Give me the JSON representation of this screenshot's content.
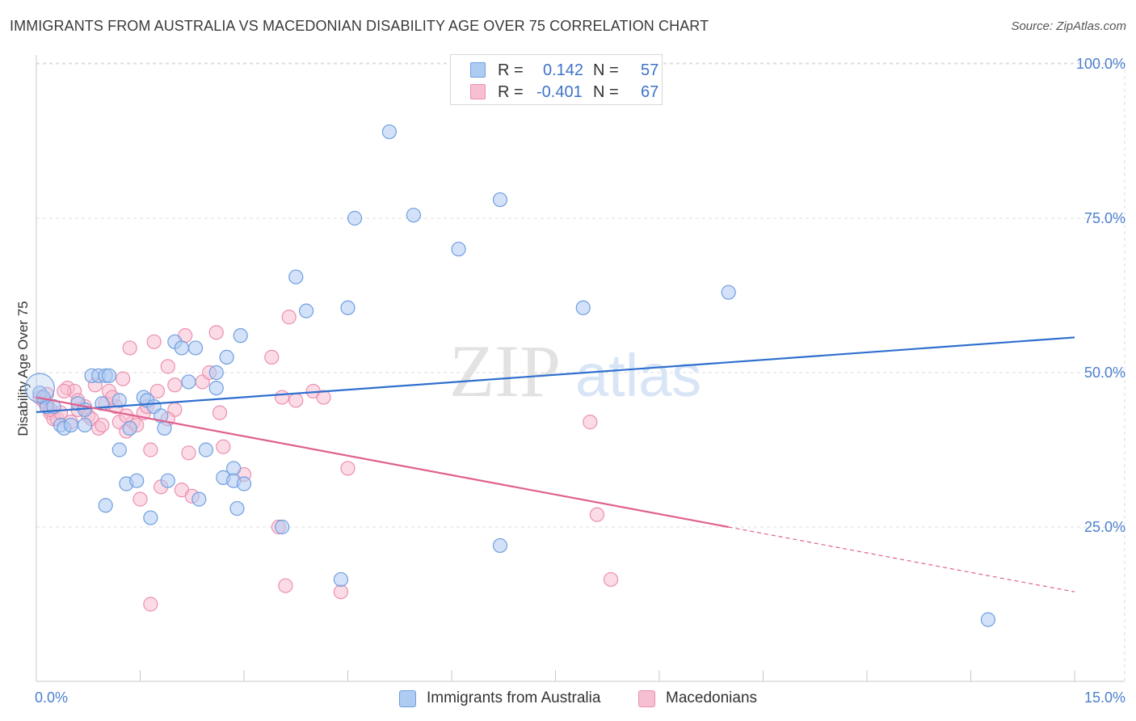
{
  "title": "IMMIGRANTS FROM AUSTRALIA VS MACEDONIAN DISABILITY AGE OVER 75 CORRELATION CHART",
  "source": "Source: ZipAtlas.com",
  "watermark": {
    "zip": "ZIP",
    "atlas": "atlas"
  },
  "legend_top": {
    "rows": [
      {
        "r_label": "R =",
        "r_value": "0.142",
        "n_label": "N =",
        "n_value": "57"
      },
      {
        "r_label": "R =",
        "r_value": "-0.401",
        "n_label": "N =",
        "n_value": "67"
      }
    ]
  },
  "legend_bottom": {
    "items": [
      {
        "label": "Immigrants from Australia"
      },
      {
        "label": "Macedonians"
      }
    ]
  },
  "colors": {
    "blue_fill": "#aecbf2",
    "blue_stroke": "#6f9fe0",
    "blue_line": "#2f6fce",
    "pink_fill": "#f7bfd2",
    "pink_stroke": "#ec8fb0",
    "pink_line": "#e0608c",
    "grid": "#dddddd",
    "tick_text": "#4a7fcf"
  },
  "chart_data": {
    "type": "scatter",
    "title": "IMMIGRANTS FROM AUSTRALIA VS MACEDONIAN DISABILITY AGE OVER 75 CORRELATION CHART",
    "xlabel": "",
    "ylabel": "Disability Age Over 75",
    "xlim": [
      0,
      15
    ],
    "ylim": [
      0,
      105
    ],
    "x_tick_labels": [
      "0.0%",
      "15.0%"
    ],
    "y_ticks": [
      25,
      50,
      75,
      100
    ],
    "y_tick_labels": [
      "25.0%",
      "50.0%",
      "75.0%",
      "100.0%"
    ],
    "grid": true,
    "legend_position": "top-center",
    "series": [
      {
        "name": "Immigrants from Australia",
        "r": 0.142,
        "n": 57,
        "trend": {
          "x": [
            0,
            15
          ],
          "y": [
            43.6,
            55.7
          ],
          "dashed_from": null
        },
        "points": [
          [
            0.05,
            46.7
          ],
          [
            0.1,
            46.0
          ],
          [
            0.15,
            44.5
          ],
          [
            0.25,
            44.5
          ],
          [
            0.35,
            41.5
          ],
          [
            0.4,
            41.0
          ],
          [
            0.5,
            41.5
          ],
          [
            0.6,
            45.0
          ],
          [
            0.7,
            44.0
          ],
          [
            0.8,
            49.5
          ],
          [
            0.9,
            49.5
          ],
          [
            0.95,
            45.0
          ],
          [
            0.7,
            41.5
          ],
          [
            1.0,
            49.5
          ],
          [
            1.05,
            49.5
          ],
          [
            1.2,
            45.5
          ],
          [
            1.2,
            37.5
          ],
          [
            1.3,
            32.0
          ],
          [
            1.35,
            41.0
          ],
          [
            1.45,
            32.5
          ],
          [
            1.55,
            46.0
          ],
          [
            1.6,
            45.5
          ],
          [
            1.65,
            26.5
          ],
          [
            1.7,
            44.5
          ],
          [
            1.8,
            43.0
          ],
          [
            1.85,
            41.0
          ],
          [
            1.9,
            32.5
          ],
          [
            2.0,
            55.0
          ],
          [
            2.1,
            54.0
          ],
          [
            2.2,
            48.5
          ],
          [
            2.3,
            54.0
          ],
          [
            2.35,
            29.5
          ],
          [
            2.45,
            37.5
          ],
          [
            2.6,
            47.5
          ],
          [
            2.6,
            50.0
          ],
          [
            2.7,
            33.0
          ],
          [
            2.75,
            52.5
          ],
          [
            2.85,
            34.5
          ],
          [
            2.85,
            32.5
          ],
          [
            2.9,
            28.0
          ],
          [
            2.95,
            56.0
          ],
          [
            3.0,
            32.0
          ],
          [
            3.55,
            25.0
          ],
          [
            3.75,
            65.5
          ],
          [
            3.9,
            60.0
          ],
          [
            4.5,
            60.5
          ],
          [
            4.6,
            75.0
          ],
          [
            5.1,
            89.0
          ],
          [
            5.45,
            75.5
          ],
          [
            6.1,
            70.0
          ],
          [
            6.7,
            78.0
          ],
          [
            6.7,
            22.0
          ],
          [
            7.9,
            60.5
          ],
          [
            10.0,
            63.0
          ],
          [
            13.75,
            10.0
          ],
          [
            1.0,
            28.5
          ],
          [
            4.4,
            16.5
          ]
        ]
      },
      {
        "name": "Macedonians",
        "r": -0.401,
        "n": 67,
        "trend": {
          "x": [
            0,
            15
          ],
          "y": [
            46.0,
            14.5
          ],
          "dashed_from": 10.0
        },
        "points": [
          [
            0.05,
            46.0
          ],
          [
            0.1,
            45.5
          ],
          [
            0.15,
            45.0
          ],
          [
            0.2,
            43.5
          ],
          [
            0.25,
            42.5
          ],
          [
            0.3,
            42.5
          ],
          [
            0.35,
            43.5
          ],
          [
            0.45,
            47.5
          ],
          [
            0.55,
            47.0
          ],
          [
            0.6,
            44.0
          ],
          [
            0.7,
            44.5
          ],
          [
            0.75,
            43.0
          ],
          [
            0.8,
            42.5
          ],
          [
            0.85,
            48.0
          ],
          [
            0.9,
            41.0
          ],
          [
            0.95,
            41.5
          ],
          [
            1.0,
            45.0
          ],
          [
            1.05,
            47.0
          ],
          [
            1.15,
            44.5
          ],
          [
            1.2,
            42.0
          ],
          [
            1.25,
            49.0
          ],
          [
            1.3,
            40.5
          ],
          [
            1.35,
            54.0
          ],
          [
            1.4,
            42.0
          ],
          [
            1.45,
            41.5
          ],
          [
            1.5,
            29.5
          ],
          [
            1.55,
            43.5
          ],
          [
            1.65,
            37.5
          ],
          [
            1.7,
            55.0
          ],
          [
            1.75,
            47.0
          ],
          [
            1.8,
            31.5
          ],
          [
            1.9,
            51.0
          ],
          [
            2.0,
            48.0
          ],
          [
            2.1,
            31.0
          ],
          [
            2.15,
            56.0
          ],
          [
            2.2,
            37.0
          ],
          [
            2.25,
            30.0
          ],
          [
            2.4,
            48.5
          ],
          [
            2.5,
            50.0
          ],
          [
            2.6,
            56.5
          ],
          [
            2.65,
            43.5
          ],
          [
            2.7,
            38.0
          ],
          [
            3.0,
            33.5
          ],
          [
            3.4,
            52.5
          ],
          [
            3.55,
            46.0
          ],
          [
            3.65,
            59.0
          ],
          [
            3.75,
            45.5
          ],
          [
            4.0,
            47.0
          ],
          [
            4.15,
            46.0
          ],
          [
            4.5,
            34.5
          ],
          [
            3.5,
            25.0
          ],
          [
            3.6,
            15.5
          ],
          [
            4.4,
            14.5
          ],
          [
            1.65,
            12.5
          ],
          [
            8.0,
            42.0
          ],
          [
            8.1,
            27.0
          ],
          [
            8.3,
            16.5
          ],
          [
            0.4,
            47.0
          ],
          [
            0.6,
            45.5
          ],
          [
            1.1,
            46.0
          ],
          [
            0.2,
            44.0
          ],
          [
            1.6,
            44.5
          ],
          [
            2.0,
            44.0
          ],
          [
            1.9,
            42.5
          ],
          [
            0.15,
            46.5
          ],
          [
            0.5,
            42.0
          ],
          [
            1.3,
            43.0
          ]
        ]
      }
    ]
  }
}
